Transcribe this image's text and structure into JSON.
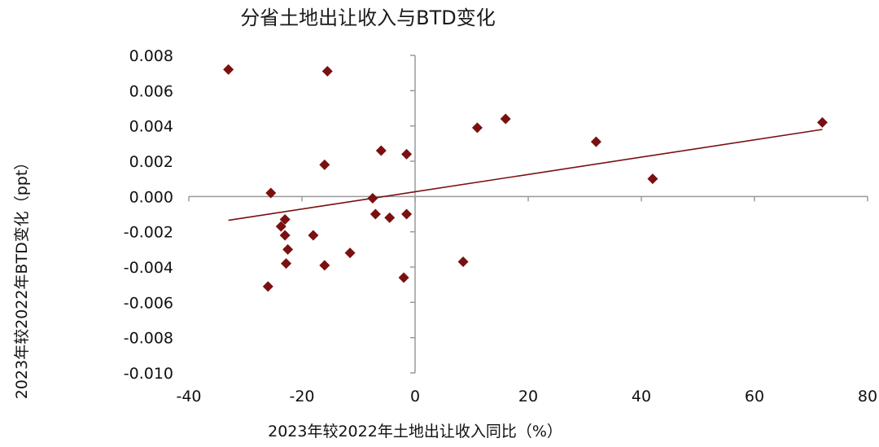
{
  "chart_data": {
    "type": "scatter",
    "title": "分省土地出让收入与BTD变化",
    "xlabel": "2023年较2022年土地出让收入同比（%）",
    "ylabel": "2023年较2022年BTD变化（ppt）",
    "xlim": [
      -40,
      80
    ],
    "ylim": [
      -0.01,
      0.008
    ],
    "xticks": [
      -40,
      -20,
      0,
      20,
      40,
      60,
      80
    ],
    "xtick_labels": [
      "-40",
      "-20",
      "0",
      "20",
      "40",
      "60",
      "80"
    ],
    "yticks": [
      0.008,
      0.006,
      0.004,
      0.002,
      0.0,
      -0.002,
      -0.004,
      -0.006,
      -0.008,
      -0.01
    ],
    "ytick_labels": [
      "0.008",
      "0.006",
      "0.004",
      "0.002",
      "0.000",
      "-0.002",
      "-0.004",
      "-0.006",
      "-0.008",
      "-0.010"
    ],
    "grid": false,
    "marker": "diamond",
    "marker_color": "#7a1010",
    "trendline": {
      "type": "linear",
      "color": "#7a1010",
      "x": [
        -33,
        72
      ],
      "y": [
        -0.00135,
        0.0038
      ]
    },
    "points": [
      {
        "x": -33,
        "y": 0.0072
      },
      {
        "x": -15.5,
        "y": 0.0071
      },
      {
        "x": -25.5,
        "y": 0.0002
      },
      {
        "x": -16,
        "y": 0.0018
      },
      {
        "x": -6,
        "y": 0.0026
      },
      {
        "x": -1.5,
        "y": 0.0024
      },
      {
        "x": -7.5,
        "y": -0.0001
      },
      {
        "x": -7,
        "y": -0.001
      },
      {
        "x": -4.5,
        "y": -0.0012
      },
      {
        "x": -1.5,
        "y": -0.001
      },
      {
        "x": -23,
        "y": -0.0013
      },
      {
        "x": -23.7,
        "y": -0.0017
      },
      {
        "x": -23,
        "y": -0.0022
      },
      {
        "x": -18,
        "y": -0.0022
      },
      {
        "x": -22.5,
        "y": -0.003
      },
      {
        "x": -11.5,
        "y": -0.0032
      },
      {
        "x": -22.8,
        "y": -0.0038
      },
      {
        "x": -16,
        "y": -0.0039
      },
      {
        "x": -26,
        "y": -0.0051
      },
      {
        "x": -2,
        "y": -0.0046
      },
      {
        "x": 8.5,
        "y": -0.0037
      },
      {
        "x": 11,
        "y": 0.0039
      },
      {
        "x": 16,
        "y": 0.0044
      },
      {
        "x": 32,
        "y": 0.0031
      },
      {
        "x": 42,
        "y": 0.001
      },
      {
        "x": 72,
        "y": 0.0042
      }
    ]
  }
}
